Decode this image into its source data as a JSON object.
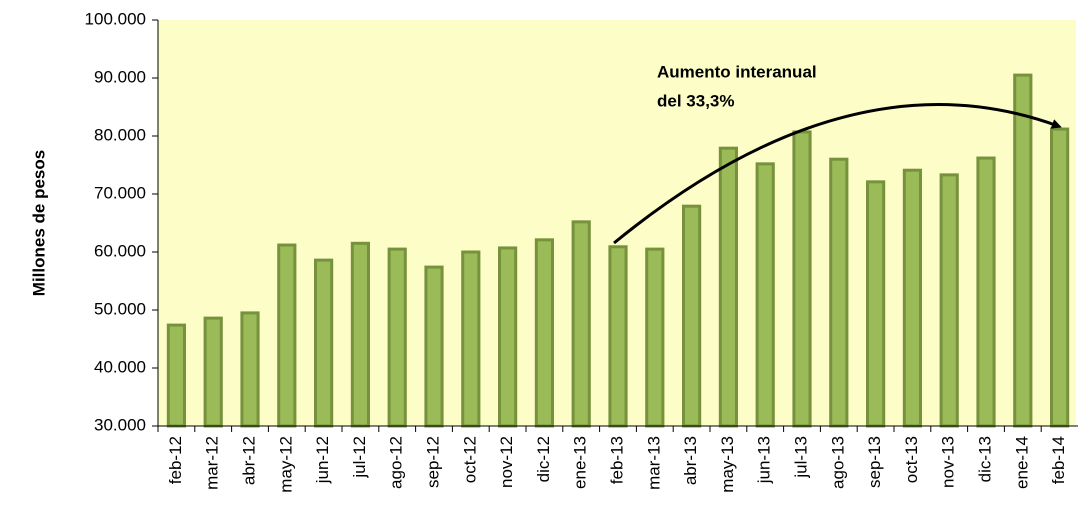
{
  "chart_data": {
    "type": "bar",
    "y_label": "Millones de pesos",
    "annotation": [
      "Aumento interanual",
      "del 33,3%"
    ],
    "categories": [
      "feb-12",
      "mar-12",
      "abr-12",
      "may-12",
      "jun-12",
      "jul-12",
      "ago-12",
      "sep-12",
      "oct-12",
      "nov-12",
      "dic-12",
      "ene-13",
      "feb-13",
      "mar-13",
      "abr-13",
      "may-13",
      "jun-13",
      "jul-13",
      "ago-13",
      "sep-13",
      "oct-13",
      "nov-13",
      "dic-13",
      "ene-14",
      "feb-14"
    ],
    "values": [
      47400,
      48600,
      49500,
      61200,
      58600,
      61500,
      60500,
      57400,
      60000,
      60700,
      62100,
      65200,
      60900,
      60500,
      67900,
      77900,
      75200,
      80700,
      76000,
      72100,
      74100,
      73300,
      76200,
      90500,
      81200
    ],
    "color": "#9bbb59",
    "ylim": [
      30000,
      100000
    ],
    "yticks": [
      {
        "value": 30000,
        "label": "30.000"
      },
      {
        "value": 40000,
        "label": "40.000"
      },
      {
        "value": 50000,
        "label": "50.000"
      },
      {
        "value": 60000,
        "label": "60.000"
      },
      {
        "value": 70000,
        "label": "70.000"
      },
      {
        "value": 80000,
        "label": "80.000"
      },
      {
        "value": 90000,
        "label": "90.000"
      },
      {
        "value": 100000,
        "label": "100.000"
      }
    ],
    "grid": false
  }
}
